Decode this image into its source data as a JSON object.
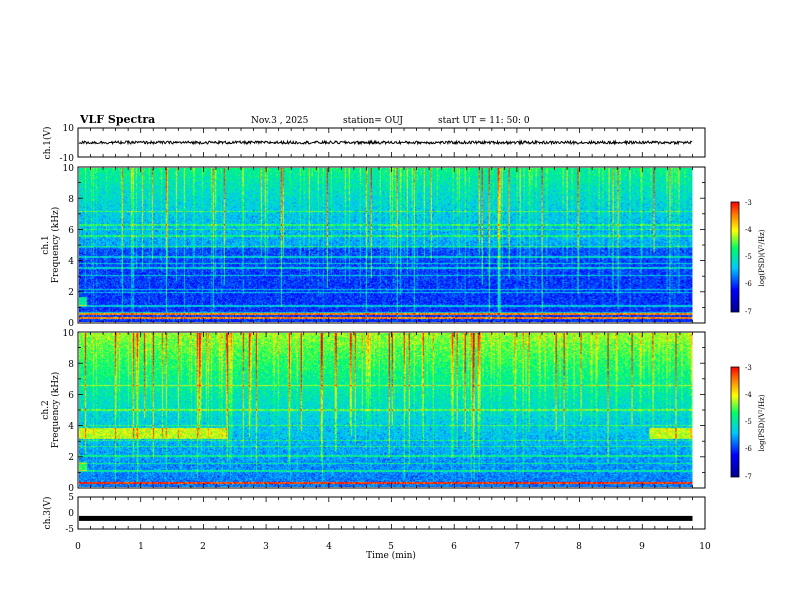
{
  "header": {
    "title": "VLF Spectra",
    "date": "Nov.3  , 2025",
    "station": "station= OUJ",
    "start": "start  UT  =   11: 50: 0"
  },
  "colors": {
    "low": "#00008f",
    "mid": "#00c8ff",
    "high": "#ffff00",
    "top": "#ff0000"
  },
  "chart_data": {
    "type": "heatmap",
    "x_label": "Time  (min)",
    "x_ticks": [
      "0",
      "1",
      "2",
      "3",
      "4",
      "5",
      "6",
      "7",
      "8",
      "9",
      "10"
    ],
    "x_range": [
      0,
      10
    ],
    "data_end_min": 9.8,
    "ch1_waveform": {
      "label": "ch.1(V)",
      "y_range": [
        -10,
        10
      ],
      "y_ticks": [
        "10",
        "-10"
      ],
      "trace_level_v": 0,
      "trace_amplitude_v": 1
    },
    "ch1_spectrogram": {
      "label": "ch.1",
      "ylabel": "Frequency  (kHz)",
      "y_range": [
        0,
        10
      ],
      "y_ticks": [
        "0",
        "2",
        "4",
        "6",
        "8",
        "10"
      ],
      "colorbar_label": "log(PSD)(V²/Hz)",
      "colorbar_range": [
        -7,
        -3
      ],
      "colorbar_ticks": [
        "-3",
        "-4",
        "-5",
        "-6",
        "-7"
      ],
      "base_level_low_freq": -6.0,
      "base_level_high_freq": -5.2,
      "bands_khz": [
        0.6,
        1.0,
        1.9,
        2.1,
        3.0,
        3.5,
        3.8,
        4.2,
        4.9,
        5.6,
        6.0,
        6.3,
        7.2
      ],
      "strong_lines_khz": [
        0.25,
        0.5
      ]
    },
    "ch2_spectrogram": {
      "label": "ch.2",
      "ylabel": "Frequency  (kHz)",
      "y_range": [
        0,
        10
      ],
      "y_ticks": [
        "0",
        "2",
        "4",
        "6",
        "8",
        "10"
      ],
      "colorbar_label": "log(PSD)(V²/Hz)",
      "colorbar_range": [
        -7,
        -3
      ],
      "colorbar_ticks": [
        "-3",
        "-4",
        "-5",
        "-6",
        "-7"
      ],
      "base_level_low_freq": -5.7,
      "base_level_high_freq": -4.3,
      "emission_band_khz": [
        3.1,
        3.8
      ],
      "emission_intervals_min": [
        [
          0,
          2.35
        ],
        [
          9.1,
          9.8
        ]
      ],
      "bands_khz": [
        1.0,
        1.5,
        2.0,
        2.6,
        3.0,
        4.0,
        5.0,
        6.6
      ],
      "strong_lines_khz": [
        0.25
      ]
    },
    "ch3_waveform": {
      "label": "ch.3(V)",
      "y_range": [
        -5,
        5
      ],
      "y_ticks": [
        "5",
        "0",
        "-5"
      ],
      "trace_level_v": -1.7
    }
  }
}
